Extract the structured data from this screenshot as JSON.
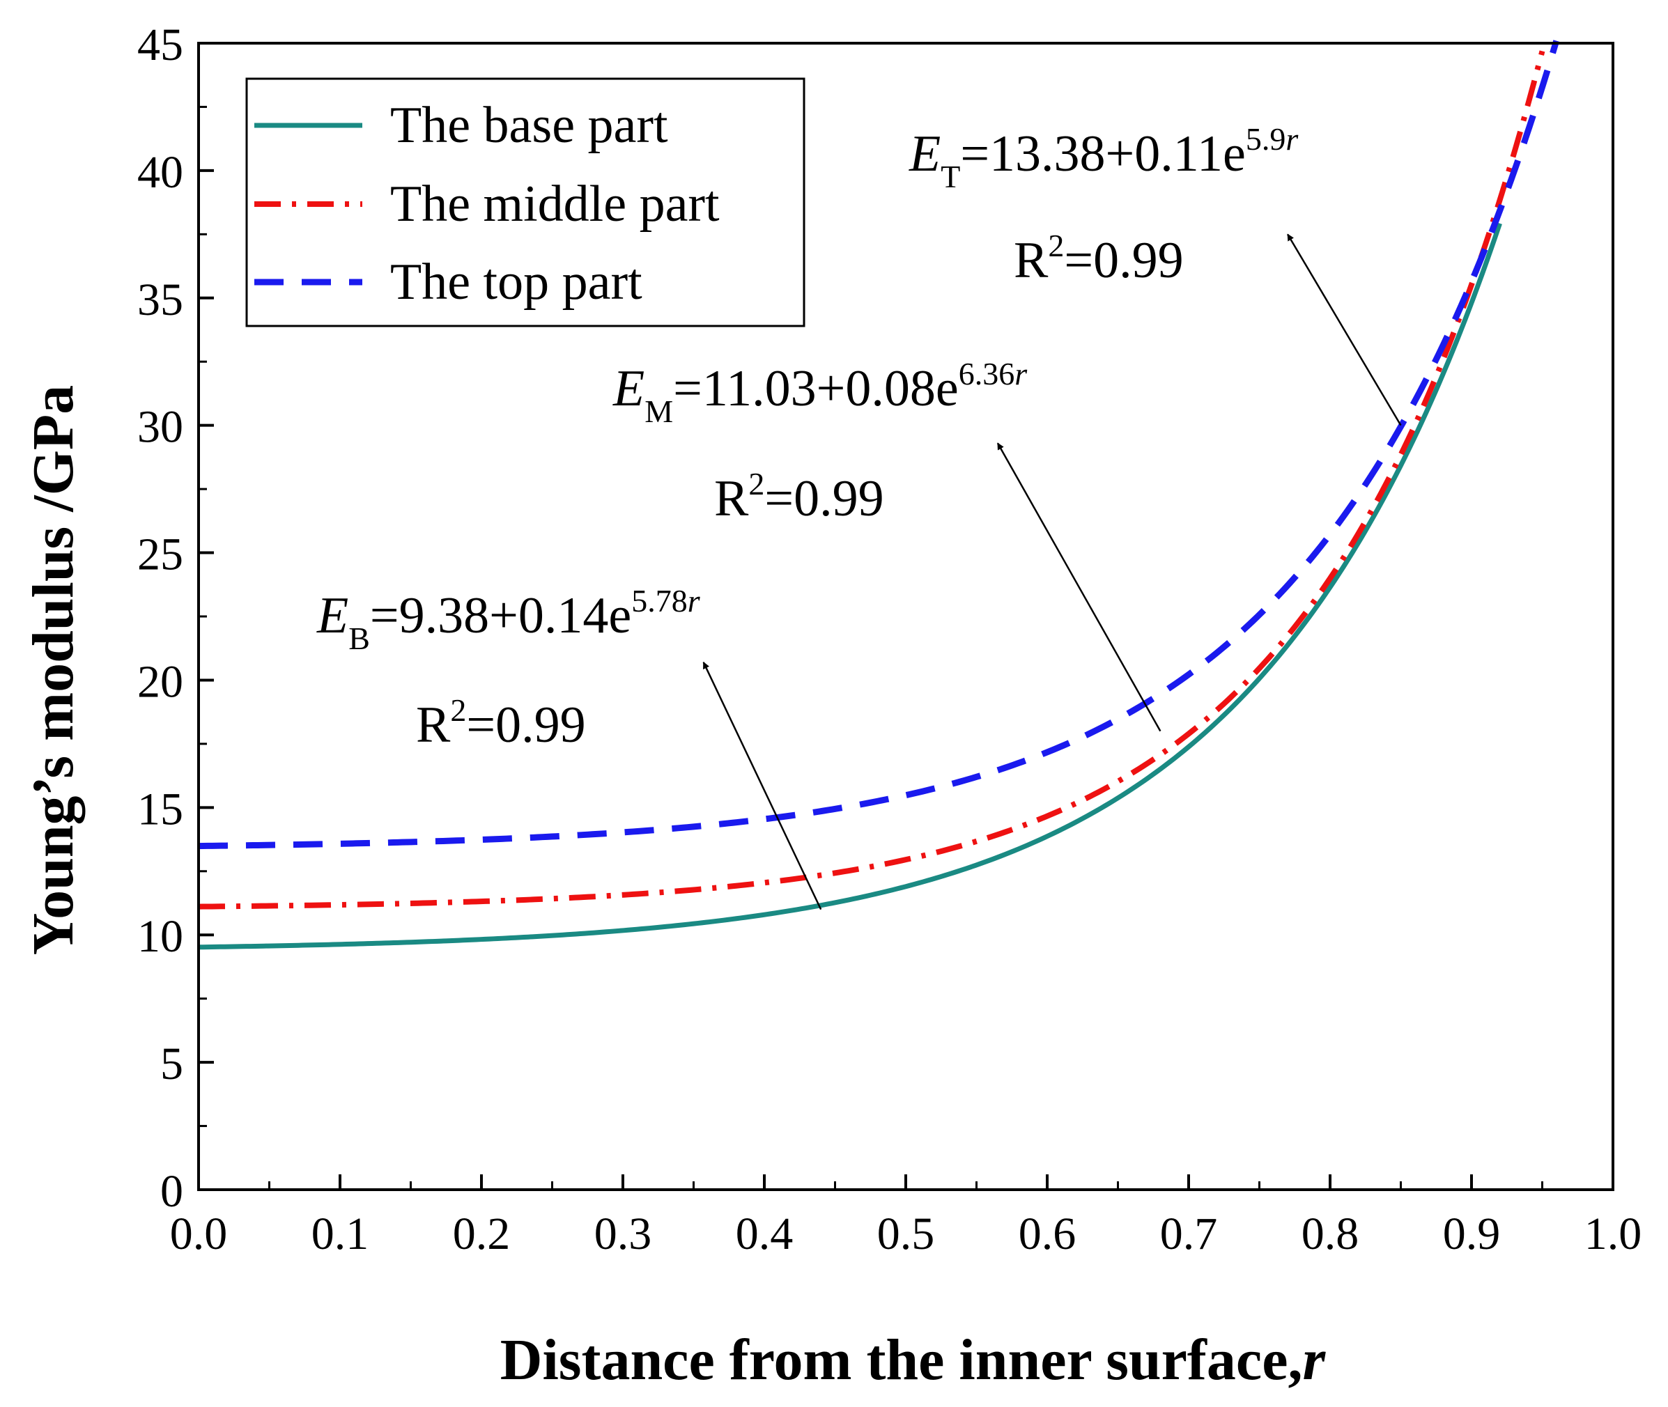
{
  "chart_data": {
    "type": "line",
    "xlabel": "Distance from the inner surface,",
    "xlabel_symbol": "r",
    "ylabel": "Young’s modulus /GPa",
    "xlim": [
      0.0,
      1.0
    ],
    "ylim": [
      0,
      45
    ],
    "xticks": [
      "0.0",
      "0.1",
      "0.2",
      "0.3",
      "0.4",
      "0.5",
      "0.6",
      "0.7",
      "0.8",
      "0.9",
      "1.0"
    ],
    "yticks": [
      "0",
      "5",
      "10",
      "15",
      "20",
      "25",
      "30",
      "35",
      "40",
      "45"
    ],
    "grid": false,
    "legend_position": "top-left",
    "series": [
      {
        "name": "The base part",
        "style": "solid",
        "color": "#1a8a83",
        "formula": {
          "a": 9.38,
          "b": 0.14,
          "k": 5.78
        },
        "x_range": [
          0.0,
          0.92
        ]
      },
      {
        "name": "The middle part",
        "style": "dash-dot",
        "color": "#ee1111",
        "formula": {
          "a": 11.03,
          "b": 0.08,
          "k": 6.36
        },
        "x_range": [
          0.0,
          0.95
        ]
      },
      {
        "name": "The top part",
        "style": "dashed",
        "color": "#1a1aee",
        "formula": {
          "a": 13.38,
          "b": 0.11,
          "k": 5.9
        },
        "x_range": [
          0.0,
          0.96
        ]
      }
    ],
    "annotations": [
      {
        "name": "top-equation",
        "symbol": "E",
        "subscript": "T",
        "body": "=13.38+0.11e",
        "exponent": "5.9",
        "exponent_symbol": "r",
        "r2_prefix": "R",
        "r2_power": "2",
        "r2_suffix": "=0.99",
        "arrow_from": [
          0.85,
          30.0
        ],
        "arrow_to": [
          0.77,
          37.5
        ]
      },
      {
        "name": "middle-equation",
        "symbol": "E",
        "subscript": "M",
        "body": "=11.03+0.08e",
        "exponent": "6.36",
        "exponent_symbol": "r",
        "r2_prefix": "R",
        "r2_power": "2",
        "r2_suffix": "=0.99",
        "arrow_from": [
          0.68,
          18.0
        ],
        "arrow_to": [
          0.565,
          29.3
        ]
      },
      {
        "name": "base-equation",
        "symbol": "E",
        "subscript": "B",
        "body": "=9.38+0.14e",
        "exponent": "5.78",
        "exponent_symbol": "r",
        "r2_prefix": "R",
        "r2_power": "2",
        "r2_suffix": "=0.99",
        "arrow_from": [
          0.44,
          11.0
        ],
        "arrow_to": [
          0.357,
          20.7
        ]
      }
    ]
  }
}
